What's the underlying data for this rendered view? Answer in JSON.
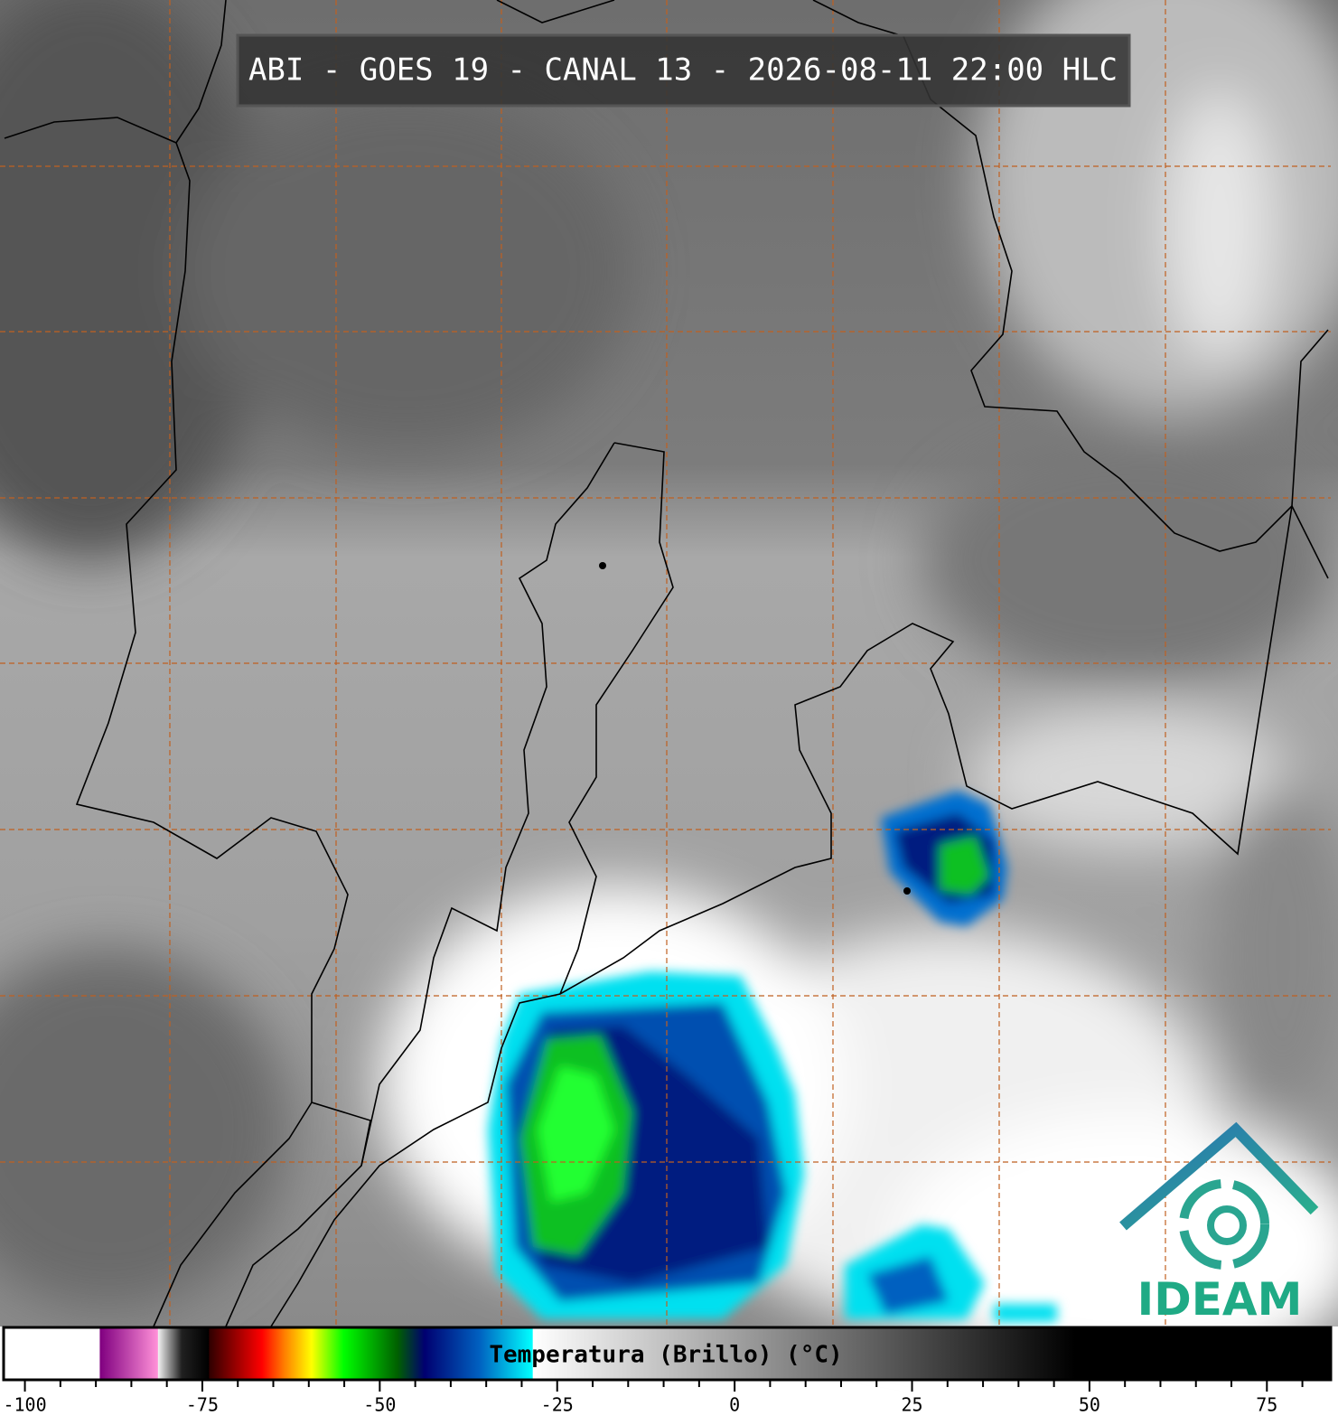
{
  "title": "ABI - GOES 19 - CANAL 13 - 2026-08-11 22:00 HLC",
  "logo": "IDEAM",
  "colorbar": {
    "label": "Temperatura (Brillo) (°C)",
    "lim": [
      -103,
      84
    ],
    "ticks": [
      -100,
      -75,
      -50,
      -25,
      0,
      25,
      50,
      75
    ],
    "minor_ticks": [
      -95,
      -90,
      -85,
      -80,
      -70,
      -65,
      -60,
      -55,
      -45,
      -40,
      -35,
      -30,
      -20,
      -15,
      -10,
      -5,
      5,
      10,
      15,
      20,
      30,
      35,
      40,
      45,
      55,
      60,
      65,
      70,
      80
    ],
    "stops": [
      {
        "value": -103,
        "color": "#ffffff"
      },
      {
        "value": -89.5,
        "color": "#ffffff"
      },
      {
        "value": -89.4,
        "color": "#800080"
      },
      {
        "value": -81.3,
        "color": "#ff90d8"
      },
      {
        "value": -81.2,
        "color": "#f0f0f0"
      },
      {
        "value": -77.9,
        "color": "#202020"
      },
      {
        "value": -74.1,
        "color": "#000000"
      },
      {
        "value": -74,
        "color": "#300000"
      },
      {
        "value": -66.6,
        "color": "#ff0000"
      },
      {
        "value": -63.4,
        "color": "#ff8000"
      },
      {
        "value": -59.6,
        "color": "#ffff00"
      },
      {
        "value": -55.1,
        "color": "#00ff00"
      },
      {
        "value": -47.5,
        "color": "#006000"
      },
      {
        "value": -43.7,
        "color": "#000070"
      },
      {
        "value": -36,
        "color": "#0060c0"
      },
      {
        "value": -28.5,
        "color": "#00ffff"
      },
      {
        "value": -28.4,
        "color": "#ffffff"
      },
      {
        "value": 48,
        "color": "#000000"
      },
      {
        "value": 84,
        "color": "#000000"
      }
    ]
  }
}
